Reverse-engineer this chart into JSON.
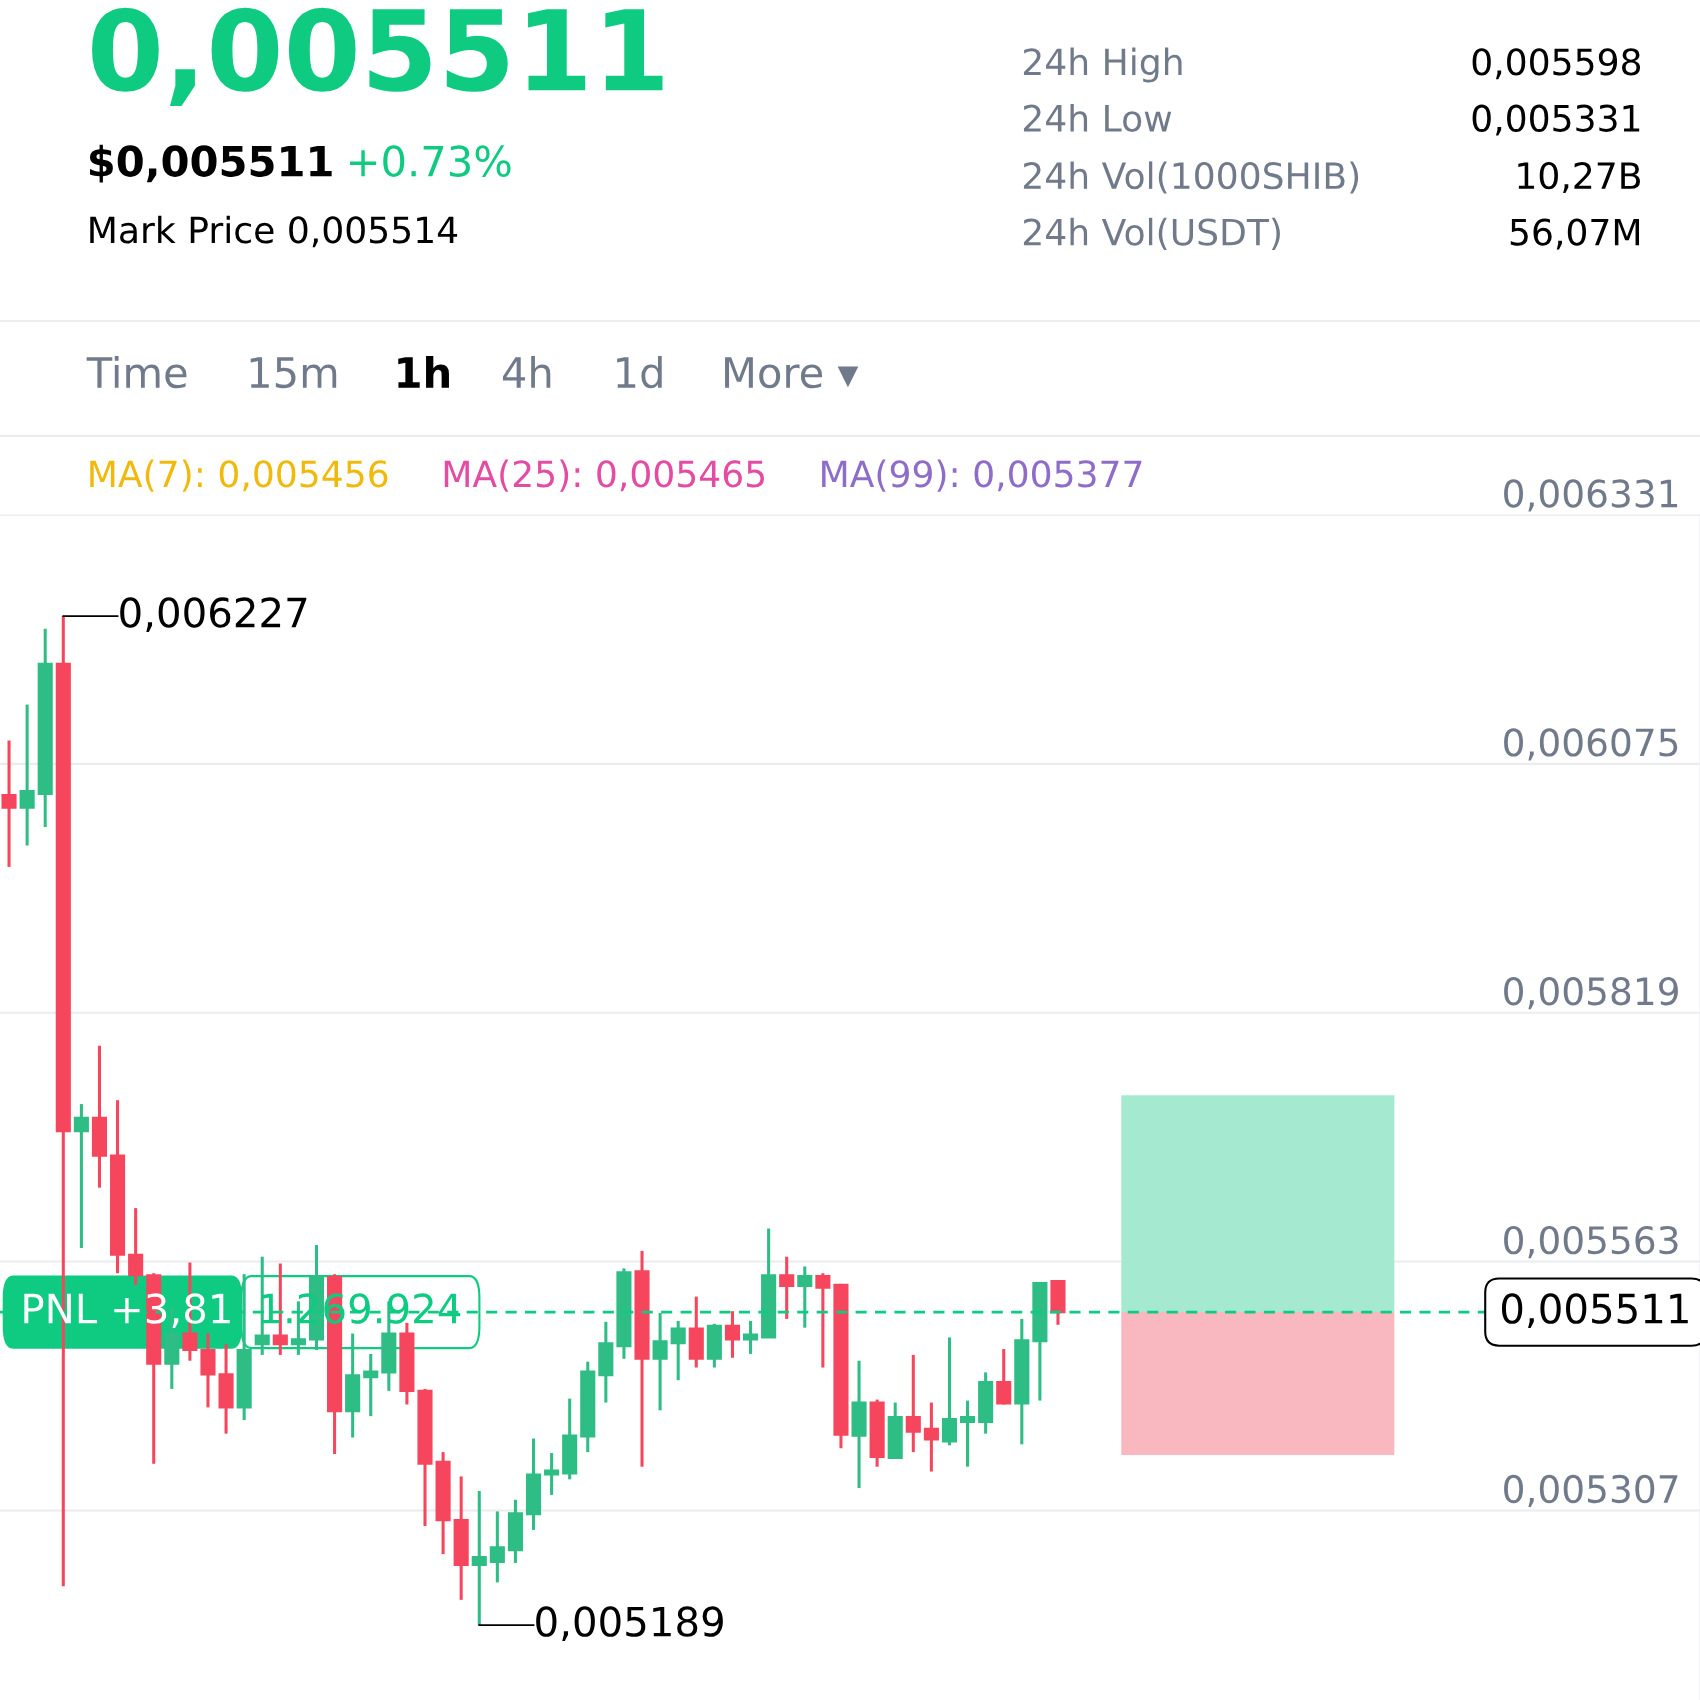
{
  "chart_data": {
    "type": "candlestick",
    "title": "0,005511",
    "subtitle": "$0,005511 +0.73%",
    "categories": [
      null,
      null,
      null,
      null,
      null,
      null,
      null,
      null,
      null,
      null,
      null,
      null,
      null,
      null,
      null,
      null,
      null,
      null,
      null,
      null,
      null,
      null,
      null,
      null,
      null,
      null,
      null,
      null,
      null,
      null,
      null,
      null,
      null,
      null,
      null,
      null,
      null,
      null,
      null,
      null,
      null,
      null,
      null,
      null,
      null,
      null,
      null,
      null,
      null,
      null,
      null,
      null,
      null,
      null,
      null,
      null,
      null,
      null,
      null,
      null,
      null,
      null,
      null,
      null,
      null,
      null,
      null,
      null,
      null,
      null,
      null,
      null,
      null,
      null,
      null,
      null,
      null,
      null,
      null,
      null,
      null,
      null,
      null,
      null,
      null,
      null,
      null,
      null,
      null,
      null,
      null,
      null,
      null,
      null
    ],
    "ohlc": [
      [
        0.006043,
        0.006099,
        0.005969,
        0.00603
      ],
      [
        0.00603,
        0.006136,
        0.005991,
        0.006047
      ],
      [
        0.006044,
        0.006214,
        0.00601,
        0.006178
      ],
      [
        0.006178,
        0.006227,
        0.005229,
        0.005697
      ],
      [
        0.005697,
        0.005725,
        0.005577,
        0.005711
      ],
      [
        0.005711,
        0.005785,
        0.005639,
        0.005672
      ],
      [
        0.005672,
        0.005729,
        0.005551,
        0.00557
      ],
      [
        0.00557,
        0.005618,
        0.005539,
        0.005549
      ],
      [
        0.005549,
        0.005551,
        0.005355,
        0.005458
      ],
      [
        0.005458,
        0.005517,
        0.005432,
        0.005489
      ],
      [
        0.005489,
        0.005562,
        0.005461,
        0.005472
      ],
      [
        0.005472,
        0.005489,
        0.005413,
        0.005447
      ],
      [
        0.005447,
        0.005478,
        0.005386,
        0.005413
      ],
      [
        0.005413,
        0.00555,
        0.0054,
        0.005472
      ],
      [
        0.005478,
        0.005568,
        0.005467,
        0.005487
      ],
      [
        0.005487,
        0.005561,
        0.005467,
        0.005478
      ],
      [
        0.005478,
        0.005522,
        0.005467,
        0.005483
      ],
      [
        0.005483,
        0.00558,
        0.005472,
        0.005547
      ],
      [
        0.005547,
        0.00555,
        0.005365,
        0.005409
      ],
      [
        0.005409,
        0.005489,
        0.005382,
        0.005446
      ],
      [
        0.005444,
        0.005468,
        0.005404,
        0.00545
      ],
      [
        0.005449,
        0.005522,
        0.00543,
        0.005489
      ],
      [
        0.005489,
        0.0055,
        0.005416,
        0.00543
      ],
      [
        0.00543,
        0.005432,
        0.005291,
        0.005355
      ],
      [
        0.005357,
        0.005367,
        0.005262,
        0.005297
      ],
      [
        0.005297,
        0.005342,
        0.005215,
        0.005251
      ],
      [
        0.005251,
        0.005327,
        0.005189,
        0.005259
      ],
      [
        0.005254,
        0.005306,
        0.005233,
        0.005269
      ],
      [
        0.005266,
        0.005318,
        0.005253,
        0.005304
      ],
      [
        0.005303,
        0.005381,
        0.005287,
        0.005344
      ],
      [
        0.005344,
        0.005366,
        0.005323,
        0.005348
      ],
      [
        0.005345,
        0.005422,
        0.005339,
        0.005384
      ],
      [
        0.005383,
        0.00546,
        0.005367,
        0.00545
      ],
      [
        0.005446,
        0.005501,
        0.005418,
        0.005479
      ],
      [
        0.005476,
        0.005556,
        0.005463,
        0.005552
      ],
      [
        0.005553,
        0.005574,
        0.005352,
        0.005463
      ],
      [
        0.005463,
        0.00551,
        0.00541,
        0.005481
      ],
      [
        0.005479,
        0.005502,
        0.005441,
        0.005494
      ],
      [
        0.005494,
        0.005527,
        0.005454,
        0.005463
      ],
      [
        0.005463,
        0.005499,
        0.005454,
        0.005497
      ],
      [
        0.005497,
        0.005512,
        0.005464,
        0.005483
      ],
      [
        0.005483,
        0.005502,
        0.005468,
        0.005488
      ],
      [
        0.005485,
        0.005597,
        0.005485,
        0.005549
      ],
      [
        0.005549,
        0.005568,
        0.005504,
        0.005538
      ],
      [
        0.005538,
        0.005558,
        0.005495,
        0.005548
      ],
      [
        0.005548,
        0.005551,
        0.005454,
        0.005536
      ],
      [
        0.005539,
        0.00554,
        0.005371,
        0.005385
      ],
      [
        0.005384,
        0.005461,
        0.00533,
        0.005418
      ],
      [
        0.005418,
        0.005421,
        0.005352,
        0.005362
      ],
      [
        0.005361,
        0.005418,
        0.005361,
        0.005403
      ],
      [
        0.005403,
        0.005467,
        0.005367,
        0.005388
      ],
      [
        0.005391,
        0.005418,
        0.005347,
        0.00538
      ],
      [
        0.005378,
        0.005485,
        0.005374,
        0.005401
      ],
      [
        0.005398,
        0.00542,
        0.005352,
        0.005403
      ],
      [
        0.005398,
        0.005449,
        0.005386,
        0.005439
      ],
      [
        0.005439,
        0.005473,
        0.005416,
        0.005417
      ],
      [
        0.005417,
        0.005504,
        0.005375,
        0.005482
      ],
      [
        0.005481,
        0.005541,
        0.00542,
        0.005541
      ],
      [
        0.005543,
        0.005543,
        0.005498,
        0.005511
      ],
      null,
      null,
      null,
      null,
      null,
      null,
      null,
      null,
      null,
      null,
      null,
      null,
      null,
      null,
      null,
      null,
      null,
      null,
      null,
      null,
      null,
      null,
      null,
      null,
      null,
      null,
      null,
      null,
      null,
      null,
      null,
      null,
      null,
      null,
      null
    ],
    "ylim": [
      0.005112,
      0.006331
    ],
    "yticks": [
      {
        "value": 0.006331,
        "label": "0,006331"
      },
      {
        "value": 0.006075,
        "label": "0,006075"
      },
      {
        "value": 0.005819,
        "label": "0,005819"
      },
      {
        "value": 0.005563,
        "label": "0,005563"
      },
      {
        "value": 0.005307,
        "label": "0,005307"
      }
    ],
    "tick_labels": "y",
    "grid": "y",
    "ref_lines": [
      {
        "axis": "y",
        "value": 0.005511,
        "label": "0,005511",
        "color": "#0ecb81",
        "line_style": "dashed"
      }
    ],
    "bands": [
      {
        "axis": "y",
        "from": 0.005511,
        "to": 0.005734,
        "color": "#a0e9cd"
      },
      {
        "axis": "y",
        "from": 0.005364,
        "to": 0.005511,
        "color": "#f9b3bd"
      }
    ],
    "annotations": [
      "Mark Price 0,005514",
      "24h High",
      "0,005598",
      "24h Low",
      "0,005331",
      "24h Vol(1000SHIB)",
      "10,27B",
      "24h Vol(USDT)",
      "56,07M",
      "Time",
      "15m",
      "1h",
      "4h",
      "1d",
      "More ▾",
      "MA(7): 0,005456",
      "MA(25): 0,005465",
      "MA(99): 0,005377",
      "PNL +3,81",
      "1.269.924",
      "0,006227",
      "0,005189"
    ]
  }
}
